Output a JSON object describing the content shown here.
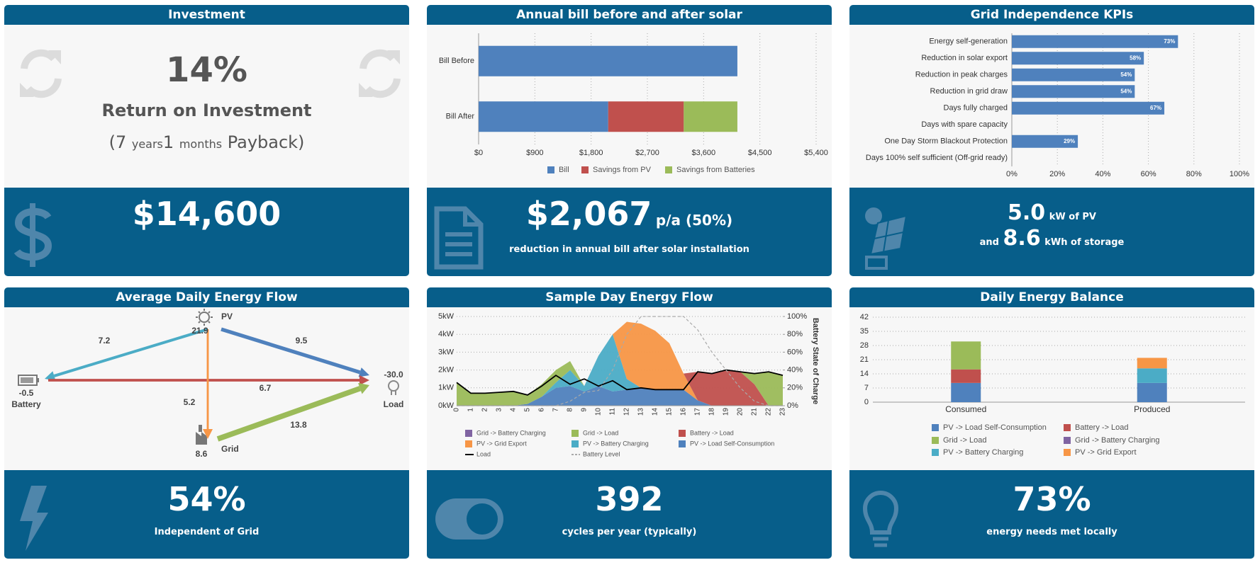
{
  "panels": {
    "investment": {
      "title": "Investment",
      "roi": "14%",
      "roi_label": "Return on Investment",
      "payback": [
        "(7",
        "years",
        "1",
        "months",
        "Payback)"
      ],
      "amount": "$14,600"
    },
    "bill": {
      "amount": "$2,067",
      "suffix": "p/a (50%)",
      "caption": "reduction in annual bill after solar installation"
    },
    "kpi": {
      "pv_value": "5.0",
      "pv_unit": "kW of PV",
      "and": "and",
      "storage_value": "8.6",
      "storage_unit": "kWh of storage"
    },
    "flow": {
      "value": "54%",
      "caption": "Independent of Grid"
    },
    "day": {
      "value": "392",
      "caption": "cycles per year (typically)"
    },
    "balance": {
      "value": "73%",
      "caption": "energy needs met locally"
    }
  },
  "energy_flow": {
    "title": "Average Daily Energy Flow",
    "nodes": [
      {
        "label": "PV",
        "value": 21.9
      },
      {
        "label": "Battery",
        "value": -0.5
      },
      {
        "label": "Load",
        "value": -30.0,
        "value_label": "-30.0"
      },
      {
        "label": "Grid",
        "value": 8.6
      }
    ],
    "edges": [
      {
        "from": "PV",
        "to": "Battery",
        "value": 7.2,
        "color": "#4bacc6"
      },
      {
        "from": "PV",
        "to": "Load",
        "value": 9.5,
        "color": "#4f81bd"
      },
      {
        "from": "Battery",
        "to": "Load",
        "value": 6.7,
        "color": "#c0504d"
      },
      {
        "from": "PV",
        "to": "Grid",
        "value": 5.2,
        "color": "#f79646"
      },
      {
        "from": "Grid",
        "to": "Load",
        "value": 13.8,
        "color": "#9bbb59"
      }
    ]
  },
  "chart_data": [
    {
      "type": "bar",
      "orientation": "horizontal",
      "stacked": true,
      "title": "Annual bill before and after solar",
      "categories": [
        "Bill Before",
        "Bill After"
      ],
      "series": [
        {
          "name": "Bill",
          "color": "#4f81bd",
          "values": [
            4140,
            2073
          ]
        },
        {
          "name": "Savings from PV",
          "color": "#c0504d",
          "values": [
            null,
            1209
          ]
        },
        {
          "name": "Savings from Batteries",
          "color": "#9bbb59",
          "values": [
            null,
            858
          ]
        }
      ],
      "xlim": [
        0,
        5400
      ],
      "xticks": [
        {
          "value": 0,
          "label": "$0"
        },
        {
          "value": 900,
          "label": "$900"
        },
        {
          "value": 1800,
          "label": "$1,800"
        },
        {
          "value": 2700,
          "label": "$2,700"
        },
        {
          "value": 3600,
          "label": "$3,600"
        },
        {
          "value": 4500,
          "label": "$4,500"
        },
        {
          "value": 5400,
          "label": "$5,400"
        }
      ],
      "grid": true,
      "legend": "bottom"
    },
    {
      "type": "bar",
      "orientation": "horizontal",
      "title": "Grid Independence KPIs",
      "categories": [
        "Energy self-generation",
        "Reduction in solar export",
        "Reduction in peak charges",
        "Reduction in grid draw",
        "Days fully charged",
        "Days with spare capacity",
        "One Day Storm Blackout Protection",
        "Days 100% self sufficient (Off-grid ready)"
      ],
      "values": [
        73,
        58,
        54,
        54,
        67,
        0,
        29,
        0
      ],
      "value_labels": [
        "73%",
        "58%",
        "54%",
        "54%",
        "67%",
        null,
        "29%",
        null
      ],
      "color": "#4f81bd",
      "xlim": [
        0,
        100
      ],
      "xticks": [
        {
          "value": 0,
          "label": "0%"
        },
        {
          "value": 20,
          "label": "20%"
        },
        {
          "value": 40,
          "label": "40%"
        },
        {
          "value": 60,
          "label": "60%"
        },
        {
          "value": 80,
          "label": "80%"
        },
        {
          "value": 100,
          "label": "100%"
        }
      ],
      "grid": true
    },
    {
      "type": "area",
      "stacked": true,
      "title": "Sample Day Energy Flow",
      "x": [
        0,
        1,
        2,
        3,
        4,
        5,
        6,
        7,
        8,
        9,
        10,
        11,
        12,
        13,
        14,
        15,
        16,
        17,
        18,
        19,
        20,
        21,
        22,
        23
      ],
      "xlim": [
        0,
        23
      ],
      "series": [
        {
          "name": "Grid -> Battery Charging",
          "color": "#8064a2",
          "values": [
            0,
            0,
            0,
            0,
            0,
            0,
            0,
            0,
            0,
            0,
            0,
            0,
            0,
            0,
            0,
            0,
            0,
            0,
            0,
            0,
            0,
            0,
            0,
            0
          ]
        },
        {
          "name": "Grid -> Load",
          "color": "#9bbb59",
          "values": [
            1.3,
            0.7,
            0.7,
            0.75,
            0.8,
            0.5,
            0.7,
            0.7,
            0.5,
            0,
            0,
            0,
            0,
            0,
            0,
            0,
            0,
            0,
            0,
            0,
            0,
            0.6,
            1.9,
            1.7
          ]
        },
        {
          "name": "Battery -> Load",
          "color": "#c0504d",
          "values": [
            0,
            0,
            0,
            0,
            0,
            0,
            0,
            0,
            0,
            0,
            0,
            0,
            0,
            0,
            0,
            0,
            0,
            1.6,
            1.8,
            2.0,
            1.9,
            1.2,
            0,
            0
          ]
        },
        {
          "name": "PV -> Grid Export",
          "color": "#f79646",
          "values": [
            0,
            0,
            0,
            0,
            0,
            0,
            0,
            0,
            0,
            0,
            0,
            0,
            3.2,
            3.6,
            3.3,
            2.6,
            0.9,
            0,
            0,
            0,
            0,
            0,
            0,
            0
          ]
        },
        {
          "name": "PV -> Battery Charging",
          "color": "#4bacc6",
          "values": [
            0,
            0,
            0,
            0,
            0,
            0,
            0,
            0.3,
            0.9,
            0.3,
            1.7,
            3.2,
            0.6,
            0,
            0,
            0,
            0,
            0,
            0,
            0,
            0,
            0,
            0,
            0
          ]
        },
        {
          "name": "PV -> Load Self-Consumption",
          "color": "#4f81bd",
          "values": [
            0,
            0,
            0,
            0,
            0,
            0.1,
            0.5,
            1.0,
            1.1,
            0.8,
            1.1,
            0.8,
            0.9,
            1.0,
            0.9,
            0.9,
            0.9,
            0.3,
            0,
            0,
            0,
            0,
            0,
            0
          ]
        },
        {
          "name": "Load",
          "type": "line",
          "color": "#000000",
          "values": [
            1.3,
            0.7,
            0.7,
            0.75,
            0.8,
            0.6,
            1.1,
            1.7,
            1.2,
            1.5,
            1.1,
            1.4,
            0.9,
            1.0,
            0.9,
            0.9,
            0.9,
            1.9,
            1.8,
            2.0,
            1.9,
            1.8,
            1.9,
            1.7
          ]
        },
        {
          "name": "Battery Level",
          "type": "line",
          "axis": "y2",
          "dashed": true,
          "color": "#aaaaaa",
          "values": [
            0,
            0,
            0,
            0,
            0,
            0,
            0,
            0,
            5,
            15,
            17,
            40,
            80,
            100,
            100,
            100,
            100,
            85,
            60,
            40,
            20,
            5,
            0,
            0
          ]
        }
      ],
      "ylim": [
        0,
        5
      ],
      "yticks": [
        {
          "value": 0,
          "label": "0kW"
        },
        {
          "value": 1,
          "label": "1kW"
        },
        {
          "value": 2,
          "label": "2kW"
        },
        {
          "value": 3,
          "label": "3kW"
        },
        {
          "value": 4,
          "label": "4kW"
        },
        {
          "value": 5,
          "label": "5kW"
        }
      ],
      "y2lim": [
        0,
        100
      ],
      "y2ticks": [
        {
          "value": 0,
          "label": "0%"
        },
        {
          "value": 20,
          "label": "20%"
        },
        {
          "value": 40,
          "label": "40%"
        },
        {
          "value": 60,
          "label": "60%"
        },
        {
          "value": 80,
          "label": "80%"
        },
        {
          "value": 100,
          "label": "100%"
        }
      ],
      "y2label": "Battery State of Charge",
      "grid": true,
      "legend": "bottom"
    },
    {
      "type": "bar",
      "stacked": true,
      "title": "Daily Energy Balance",
      "categories": [
        "Consumed",
        "Produced"
      ],
      "series": [
        {
          "name": "PV -> Load Self-Consumption",
          "color": "#4f81bd",
          "values": [
            9.5,
            9.5
          ]
        },
        {
          "name": "Battery -> Load",
          "color": "#c0504d",
          "values": [
            6.7,
            0
          ]
        },
        {
          "name": "Grid -> Load",
          "color": "#9bbb59",
          "values": [
            13.8,
            0
          ]
        },
        {
          "name": "Grid -> Battery Charging",
          "color": "#8064a2",
          "values": [
            0,
            0
          ]
        },
        {
          "name": "PV -> Battery Charging",
          "color": "#4bacc6",
          "values": [
            0,
            7.2
          ]
        },
        {
          "name": "PV -> Grid Export",
          "color": "#f79646",
          "values": [
            0,
            5.2
          ]
        }
      ],
      "ylim": [
        0,
        42
      ],
      "yticks": [
        0,
        7,
        14,
        21,
        28,
        35,
        42
      ],
      "grid": true,
      "legend": "bottom"
    }
  ]
}
